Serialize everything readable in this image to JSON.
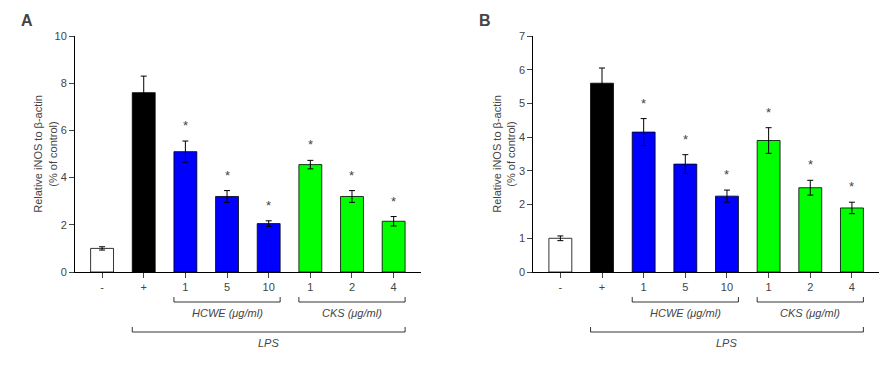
{
  "chart_data": [
    {
      "type": "bar",
      "title": "A",
      "categories": [
        "-",
        "+",
        "1",
        "5",
        "10",
        "1",
        "2",
        "4"
      ],
      "values": [
        1.0,
        7.6,
        5.1,
        3.2,
        2.05,
        4.55,
        3.2,
        2.15
      ],
      "errors": [
        0.07,
        0.7,
        0.45,
        0.25,
        0.12,
        0.18,
        0.25,
        0.2
      ],
      "colors": [
        "white",
        "black",
        "blue",
        "blue",
        "blue",
        "lime",
        "lime",
        "lime"
      ],
      "ylim": [
        0,
        10
      ],
      "yticks": [
        0,
        2,
        4,
        6,
        8,
        10
      ],
      "ylabel": "Relative iNOS to β-actin\n(% of control)",
      "annotations": [
        null,
        null,
        "*",
        "*",
        "*",
        "*",
        "*",
        "*"
      ],
      "groups": [
        {
          "label": "HCWE (μg/ml)",
          "from": 2,
          "to": 4
        },
        {
          "label": "CKS (μg/ml)",
          "from": 5,
          "to": 7
        },
        {
          "label": "LPS",
          "from": 1,
          "to": 7
        }
      ],
      "grid": false
    },
    {
      "type": "bar",
      "title": "B",
      "categories": [
        "-",
        "+",
        "1",
        "5",
        "10",
        "1",
        "2",
        "4"
      ],
      "values": [
        1.0,
        5.6,
        4.15,
        3.2,
        2.25,
        3.9,
        2.5,
        1.9
      ],
      "errors": [
        0.07,
        0.45,
        0.4,
        0.28,
        0.18,
        0.38,
        0.22,
        0.17
      ],
      "colors": [
        "white",
        "black",
        "blue",
        "blue",
        "blue",
        "lime",
        "lime",
        "lime"
      ],
      "ylim": [
        0,
        7
      ],
      "yticks": [
        0,
        1,
        2,
        3,
        4,
        5,
        6,
        7
      ],
      "ylabel": "Relative iNOS to β-actin\n(% of control)",
      "annotations": [
        null,
        null,
        "*",
        "*",
        "*",
        "*",
        "*",
        "*"
      ],
      "groups": [
        {
          "label": "HCWE (μg/ml)",
          "from": 2,
          "to": 4
        },
        {
          "label": "CKS (μg/ml)",
          "from": 5,
          "to": 7
        },
        {
          "label": "LPS",
          "from": 1,
          "to": 7
        }
      ],
      "grid": false
    }
  ]
}
